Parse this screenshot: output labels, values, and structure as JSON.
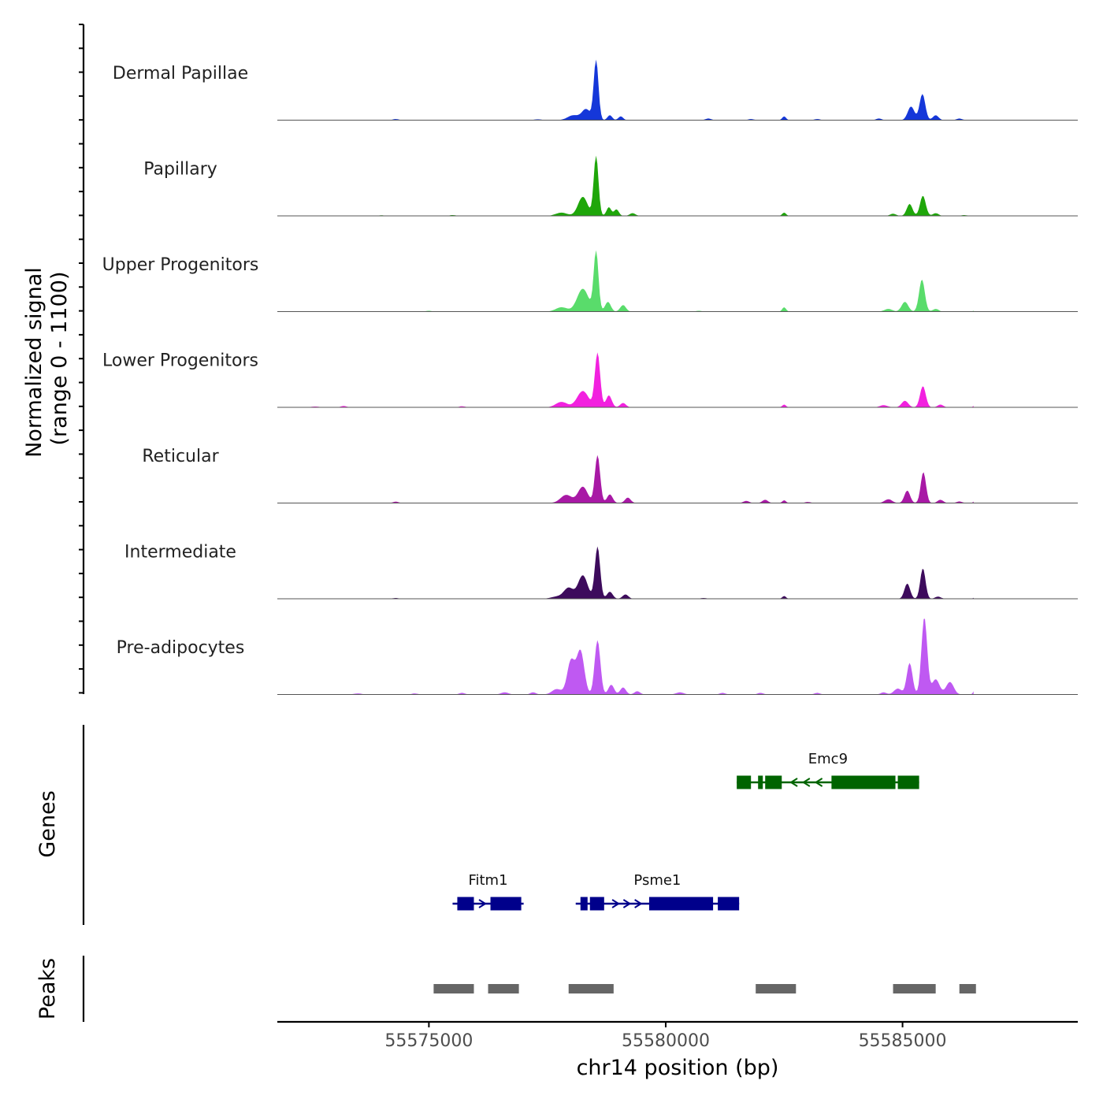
{
  "chart_data": {
    "type": "area",
    "title": "",
    "ylabel": "Normalized signal",
    "ylabel_range": "(range 0 - 1100)",
    "xlabel": "chr14 position (bp)",
    "chromosome": "chr14",
    "xlim": [
      55571800,
      55588700
    ],
    "ylim": [
      0,
      1100
    ],
    "xticks": [
      55575000,
      55580000,
      55585000
    ],
    "xtick_labels": [
      "55575000",
      "55580000",
      "55585000"
    ],
    "tracks": [
      {
        "name": "Dermal Papillae",
        "color": "#1537D9",
        "peaks": [
          [
            55574300,
            20,
            60
          ],
          [
            55577300,
            15,
            80
          ],
          [
            55578050,
            90,
            120
          ],
          [
            55578320,
            200,
            90
          ],
          [
            55578530,
            1100,
            50
          ],
          [
            55578820,
            90,
            50
          ],
          [
            55579050,
            70,
            50
          ],
          [
            55580900,
            30,
            60
          ],
          [
            55581800,
            20,
            60
          ],
          [
            55582500,
            70,
            40
          ],
          [
            55583200,
            20,
            60
          ],
          [
            55584500,
            30,
            60
          ],
          [
            55585180,
            250,
            70
          ],
          [
            55585420,
            480,
            60
          ],
          [
            55585700,
            90,
            60
          ],
          [
            55586200,
            30,
            60
          ]
        ]
      },
      {
        "name": "Papillary",
        "color": "#1FA60A",
        "peaks": [
          [
            55574000,
            10,
            60
          ],
          [
            55575500,
            15,
            60
          ],
          [
            55577800,
            60,
            120
          ],
          [
            55578250,
            350,
            100
          ],
          [
            55578530,
            1100,
            50
          ],
          [
            55578800,
            160,
            50
          ],
          [
            55578960,
            120,
            50
          ],
          [
            55579300,
            50,
            60
          ],
          [
            55582500,
            60,
            40
          ],
          [
            55584800,
            40,
            60
          ],
          [
            55585150,
            220,
            60
          ],
          [
            55585430,
            370,
            60
          ],
          [
            55585700,
            50,
            60
          ],
          [
            55586300,
            15,
            60
          ]
        ]
      },
      {
        "name": "Upper Progenitors",
        "color": "#59DC6B",
        "peaks": [
          [
            55575000,
            15,
            60
          ],
          [
            55577800,
            80,
            120
          ],
          [
            55578250,
            420,
            120
          ],
          [
            55578530,
            1100,
            50
          ],
          [
            55578780,
            180,
            60
          ],
          [
            55579100,
            120,
            60
          ],
          [
            55580700,
            15,
            60
          ],
          [
            55582500,
            80,
            40
          ],
          [
            55584700,
            50,
            80
          ],
          [
            55585050,
            180,
            70
          ],
          [
            55585410,
            590,
            60
          ],
          [
            55585700,
            50,
            60
          ],
          [
            55586550,
            40,
            40
          ]
        ]
      },
      {
        "name": "Lower Progenitors",
        "color": "#F221DF",
        "peaks": [
          [
            55572600,
            15,
            80
          ],
          [
            55573200,
            25,
            60
          ],
          [
            55575700,
            20,
            60
          ],
          [
            55577800,
            100,
            120
          ],
          [
            55578250,
            300,
            120
          ],
          [
            55578560,
            1000,
            55
          ],
          [
            55578800,
            220,
            60
          ],
          [
            55579100,
            80,
            60
          ],
          [
            55582500,
            50,
            40
          ],
          [
            55584600,
            40,
            80
          ],
          [
            55585050,
            120,
            70
          ],
          [
            55585430,
            390,
            60
          ],
          [
            55585800,
            50,
            60
          ],
          [
            55586550,
            60,
            40
          ]
        ]
      },
      {
        "name": "Reticular",
        "color": "#A819A5",
        "peaks": [
          [
            55574300,
            25,
            60
          ],
          [
            55577900,
            150,
            120
          ],
          [
            55578250,
            300,
            100
          ],
          [
            55578560,
            880,
            55
          ],
          [
            55578820,
            160,
            60
          ],
          [
            55579200,
            100,
            60
          ],
          [
            55581700,
            40,
            60
          ],
          [
            55582100,
            60,
            60
          ],
          [
            55582500,
            50,
            40
          ],
          [
            55583000,
            20,
            60
          ],
          [
            55584700,
            70,
            80
          ],
          [
            55585100,
            230,
            60
          ],
          [
            55585440,
            570,
            55
          ],
          [
            55585800,
            60,
            60
          ],
          [
            55586200,
            30,
            60
          ],
          [
            55586550,
            60,
            40
          ]
        ]
      },
      {
        "name": "Intermediate",
        "color": "#3D0B5C",
        "peaks": [
          [
            55574300,
            15,
            60
          ],
          [
            55577700,
            40,
            120
          ],
          [
            55577950,
            200,
            100
          ],
          [
            55578250,
            430,
            100
          ],
          [
            55578560,
            960,
            55
          ],
          [
            55578820,
            130,
            60
          ],
          [
            55579150,
            80,
            60
          ],
          [
            55580800,
            15,
            60
          ],
          [
            55582500,
            50,
            40
          ],
          [
            55585100,
            280,
            60
          ],
          [
            55585430,
            560,
            55
          ],
          [
            55585750,
            40,
            60
          ],
          [
            55586550,
            40,
            40
          ]
        ]
      },
      {
        "name": "Pre-adipocytes",
        "color": "#BF59F2",
        "peaks": [
          [
            55573500,
            20,
            80
          ],
          [
            55574700,
            20,
            60
          ],
          [
            55575700,
            30,
            60
          ],
          [
            55576600,
            40,
            80
          ],
          [
            55577200,
            40,
            60
          ],
          [
            55577700,
            100,
            100
          ],
          [
            55578000,
            620,
            80
          ],
          [
            55578200,
            800,
            80
          ],
          [
            55578560,
            1000,
            60
          ],
          [
            55578850,
            180,
            60
          ],
          [
            55579100,
            130,
            60
          ],
          [
            55579400,
            60,
            60
          ],
          [
            55580300,
            40,
            80
          ],
          [
            55581200,
            30,
            60
          ],
          [
            55582000,
            30,
            60
          ],
          [
            55583200,
            30,
            60
          ],
          [
            55584600,
            40,
            60
          ],
          [
            55584900,
            110,
            80
          ],
          [
            55585150,
            580,
            60
          ],
          [
            55585460,
            1420,
            60
          ],
          [
            55585700,
            280,
            80
          ],
          [
            55586000,
            230,
            80
          ],
          [
            55586550,
            130,
            40
          ]
        ]
      }
    ],
    "genes_label": "Genes",
    "genes": [
      {
        "name": "Emc9",
        "strand": "-",
        "row": 0,
        "color": "#006400",
        "start": 55581500,
        "end": 55585350,
        "exons": [
          [
            55581500,
            55581800
          ],
          [
            55581950,
            55582050
          ],
          [
            55582100,
            55582450
          ],
          [
            55583500,
            55584850
          ],
          [
            55584900,
            55585350
          ]
        ]
      },
      {
        "name": "Fitm1",
        "strand": "+",
        "row": 1,
        "color": "#00008B",
        "start": 55575500,
        "end": 55577000,
        "exons": [
          [
            55575600,
            55575950
          ],
          [
            55576300,
            55576950
          ]
        ]
      },
      {
        "name": "Psme1",
        "strand": "+",
        "row": 1,
        "color": "#00008B",
        "start": 55578100,
        "end": 55581550,
        "exons": [
          [
            55578200,
            55578350
          ],
          [
            55578400,
            55578700
          ],
          [
            55579650,
            55581000
          ],
          [
            55581100,
            55581550
          ]
        ]
      }
    ],
    "peaks_label": "Peaks",
    "peak_regions": [
      [
        55575100,
        55575950
      ],
      [
        55576250,
        55576900
      ],
      [
        55577950,
        55578900
      ],
      [
        55581900,
        55582750
      ],
      [
        55584800,
        55585700
      ],
      [
        55586200,
        55586550
      ]
    ]
  }
}
